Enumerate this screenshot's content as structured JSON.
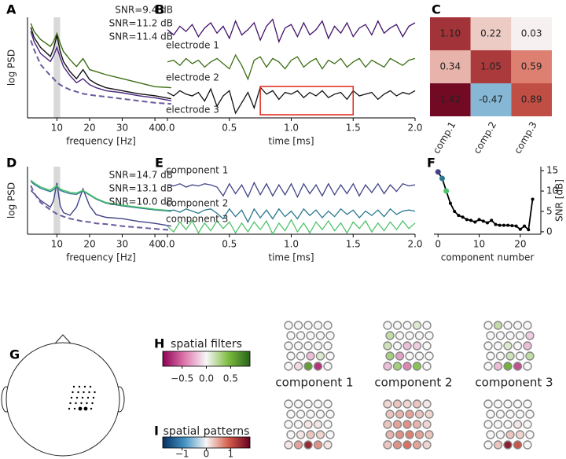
{
  "chart_data": [
    {
      "type": "line",
      "label": "A",
      "xlabel": "frequency [Hz]",
      "ylabel": "log PSD",
      "x": [
        2,
        3,
        5,
        8,
        9,
        10,
        11,
        12,
        14,
        16,
        18,
        20,
        22,
        25,
        30,
        35,
        40,
        45
      ],
      "xlim": [
        1,
        46
      ],
      "xticks": [
        10,
        20,
        30,
        40
      ],
      "ylim": [
        0,
        10
      ],
      "highlight": [
        9,
        11
      ],
      "series": [
        {
          "name": "SNR=9.4 dB",
          "color": "#4b2680",
          "values": [
            8.6,
            7.6,
            6.4,
            5.6,
            6.2,
            7.0,
            6.0,
            5.1,
            4.2,
            3.5,
            3.9,
            3.3,
            3.0,
            2.7,
            2.5,
            2.2,
            2.0,
            1.7
          ]
        },
        {
          "name": "SNR=11.2 dB",
          "color": "#3d6e14",
          "values": [
            9.4,
            8.6,
            7.8,
            7.1,
            7.6,
            8.4,
            7.4,
            6.6,
            5.8,
            5.1,
            5.9,
            4.8,
            4.6,
            4.3,
            3.9,
            3.5,
            3.1,
            3.0
          ]
        },
        {
          "name": "SNR=11.4 dB",
          "color": "#111111",
          "values": [
            9.0,
            8.0,
            7.0,
            6.1,
            6.9,
            8.2,
            6.6,
            5.6,
            4.6,
            3.9,
            4.8,
            3.8,
            3.4,
            3.0,
            2.7,
            2.4,
            2.2,
            1.9
          ]
        },
        {
          "color": "#6b5a9e",
          "dash": true,
          "values": [
            7.7,
            6.8,
            5.3,
            4.2,
            3.9,
            3.5,
            3.3,
            3.1,
            2.8,
            2.6,
            2.4,
            2.3,
            2.2,
            2.1,
            1.9,
            1.7,
            1.5,
            1.4
          ]
        }
      ]
    },
    {
      "type": "traces",
      "label": "B",
      "xlabel": "time [ms]",
      "x": [
        0,
        0.05,
        0.1,
        0.15,
        0.2,
        0.25,
        0.3,
        0.35,
        0.4,
        0.45,
        0.5,
        0.55,
        0.6,
        0.65,
        0.7,
        0.75,
        0.8,
        0.85,
        0.9,
        0.95,
        1,
        1.05,
        1.1,
        1.15,
        1.2,
        1.25,
        1.3,
        1.35,
        1.4,
        1.45,
        1.5,
        1.55,
        1.6,
        1.65,
        1.7,
        1.75,
        1.8,
        1.85,
        1.9,
        1.95,
        2
      ],
      "xlim": [
        0,
        2
      ],
      "xticks": [
        {
          "value": 0,
          "label": "0.0"
        },
        0.5,
        {
          "value": 1,
          "label": "1.0"
        },
        1.5,
        {
          "value": 2,
          "label": "2.0"
        }
      ],
      "highlight": [
        0.75,
        1.5
      ],
      "highlight_color": "#e0241b",
      "series": [
        {
          "name": "electrode 1",
          "color": "#42126b",
          "values": [
            0.1,
            -0.2,
            0.3,
            0.0,
            0.4,
            -0.3,
            0.2,
            0.5,
            -0.1,
            0.3,
            -0.4,
            0.6,
            -0.2,
            0.1,
            0.5,
            -0.5,
            0.3,
            0.7,
            -0.6,
            0.2,
            0.4,
            -0.3,
            0.5,
            -0.2,
            0.1,
            0.6,
            -0.4,
            0.3,
            -0.1,
            0.5,
            -0.3,
            0.2,
            0.4,
            -0.2,
            0.6,
            -0.1,
            0.2,
            0.4,
            -0.3,
            0.3,
            0.5
          ]
        },
        {
          "name": "electrode 2",
          "color": "#3d6e14",
          "values": [
            0.1,
            0.2,
            -0.1,
            0.3,
            0.0,
            0.2,
            -0.2,
            0.1,
            0.3,
            0.0,
            -0.3,
            0.5,
            -0.1,
            -0.9,
            0.2,
            0.4,
            -0.2,
            0.3,
            0.1,
            -0.3,
            0.2,
            0.4,
            -0.2,
            0.1,
            0.3,
            -0.3,
            0.2,
            0.0,
            0.3,
            -0.2,
            0.1,
            0.3,
            -0.2,
            0.2,
            0.0,
            -0.2,
            0.3,
            0.1,
            -0.1,
            0.2,
            0.3
          ]
        },
        {
          "name": "electrode 3",
          "color": "#111111",
          "values": [
            0.2,
            0.0,
            0.3,
            0.1,
            0.0,
            0.2,
            -0.3,
            0.4,
            -0.6,
            0.0,
            0.3,
            -1.0,
            -0.4,
            0.2,
            -0.7,
            0.5,
            0.1,
            0.3,
            -0.2,
            0.2,
            0.1,
            0.3,
            -0.1,
            0.2,
            0.0,
            0.3,
            -0.1,
            0.1,
            0.2,
            -0.2,
            0.3,
            0.0,
            0.1,
            0.2,
            -0.2,
            0.1,
            0.3,
            0.0,
            0.2,
            0.1,
            0.3
          ]
        }
      ]
    },
    {
      "type": "heatmap",
      "label": "C",
      "categories": [
        "comp.1",
        "comp.2",
        "comp.3"
      ],
      "category_colors": [
        "#414487",
        "#2a788e",
        "#4ec36b"
      ],
      "values": [
        [
          1.1,
          0.22,
          0.03
        ],
        [
          0.34,
          1.05,
          0.59
        ],
        [
          1.42,
          -0.47,
          0.89
        ]
      ],
      "value_labels": [
        [
          "1.10",
          "0.22",
          "0.03"
        ],
        [
          "0.34",
          "1.05",
          "0.59"
        ],
        [
          "1.42",
          "-0.47",
          "0.89"
        ]
      ],
      "vlim": [
        -1.5,
        1.5
      ],
      "cmap": [
        "#053061",
        "#4393c3",
        "#f7f7f7",
        "#d6604d",
        "#67001f"
      ]
    },
    {
      "type": "line",
      "label": "D",
      "xlabel": "frequency [Hz]",
      "ylabel": "log PSD",
      "x": [
        2,
        3,
        5,
        8,
        9,
        10,
        11,
        12,
        14,
        16,
        18,
        20,
        22,
        25,
        30,
        35,
        40,
        45
      ],
      "xlim": [
        1,
        46
      ],
      "xticks": [
        10,
        20,
        30,
        40
      ],
      "ylim": [
        0,
        10
      ],
      "highlight": [
        9,
        11
      ],
      "series": [
        {
          "name": "SNR=14.7 dB",
          "color": "#414487",
          "values": [
            6.5,
            6.0,
            5.0,
            4.0,
            5.0,
            7.6,
            4.2,
            3.2,
            2.8,
            4.0,
            6.7,
            4.2,
            2.9,
            2.5,
            2.3,
            1.9,
            1.6,
            1.2
          ]
        },
        {
          "name": "SNR=13.1 dB",
          "color": "#2a788e",
          "values": [
            7.8,
            7.4,
            6.8,
            6.3,
            6.6,
            7.0,
            6.5,
            6.3,
            6.0,
            5.9,
            6.4,
            5.8,
            5.2,
            4.6,
            4.2,
            3.9,
            3.6,
            3.4
          ]
        },
        {
          "name": "SNR=10.0 dB",
          "color": "#4ec36b",
          "values": [
            8.0,
            7.6,
            7.0,
            6.5,
            6.9,
            7.2,
            6.7,
            6.5,
            6.2,
            6.1,
            6.5,
            5.9,
            5.3,
            4.7,
            4.3,
            4.0,
            3.7,
            3.5
          ]
        },
        {
          "color": "#6b5a9e",
          "dash": true,
          "values": [
            7.2,
            6.1,
            4.7,
            3.6,
            3.3,
            3.0,
            2.8,
            2.6,
            2.3,
            2.1,
            1.9,
            1.8,
            1.6,
            1.5,
            1.2,
            1.0,
            0.8,
            0.6
          ]
        }
      ]
    },
    {
      "type": "traces",
      "label": "E",
      "xlabel": "time [ms]",
      "x": [
        0,
        0.05,
        0.1,
        0.15,
        0.2,
        0.25,
        0.3,
        0.35,
        0.4,
        0.45,
        0.5,
        0.55,
        0.6,
        0.65,
        0.7,
        0.75,
        0.8,
        0.85,
        0.9,
        0.95,
        1,
        1.05,
        1.1,
        1.15,
        1.2,
        1.25,
        1.3,
        1.35,
        1.4,
        1.45,
        1.5,
        1.55,
        1.6,
        1.65,
        1.7,
        1.75,
        1.8,
        1.85,
        1.9,
        1.95,
        2
      ],
      "xlim": [
        0,
        2
      ],
      "xticks": [
        {
          "value": 0,
          "label": "0.0"
        },
        0.5,
        {
          "value": 1,
          "label": "1.0"
        },
        1.5,
        {
          "value": 2,
          "label": "2.0"
        }
      ],
      "series": [
        {
          "name": "component 1",
          "color": "#414487",
          "values": [
            0.2,
            0.1,
            0.3,
            0.0,
            0.2,
            0.1,
            0.3,
            0.2,
            0.0,
            -0.8,
            0.3,
            -0.6,
            0.2,
            -0.9,
            0.4,
            -0.7,
            0.3,
            -0.8,
            0.2,
            -0.7,
            0.3,
            -0.9,
            0.3,
            -0.6,
            0.2,
            -0.8,
            0.3,
            -0.7,
            0.2,
            -0.6,
            0.3,
            -0.8,
            0.2,
            -0.5,
            0.3,
            -0.6,
            0.2,
            -0.4,
            0.3,
            0.1,
            0.2
          ]
        },
        {
          "name": "component 2",
          "color": "#2a788e",
          "values": [
            0.1,
            0.2,
            0.0,
            0.3,
            0.1,
            -0.1,
            0.2,
            0.3,
            -0.1,
            -0.6,
            0.3,
            -0.4,
            0.2,
            -0.9,
            0.3,
            -0.5,
            0.2,
            -0.6,
            0.3,
            -0.4,
            0.1,
            -0.6,
            0.3,
            -0.3,
            0.2,
            -0.5,
            0.1,
            -0.4,
            0.3,
            -0.2,
            0.2,
            -0.5,
            0.1,
            -0.3,
            0.2,
            -0.4,
            0.3,
            -0.2,
            0.1,
            0.2,
            0.1
          ]
        },
        {
          "name": "component 3",
          "color": "#4ec36b",
          "values": [
            0.0,
            -0.5,
            0.4,
            -0.3,
            0.5,
            -0.6,
            0.3,
            -0.4,
            0.5,
            -0.2,
            0.4,
            -0.6,
            0.3,
            -0.5,
            0.4,
            -0.3,
            0.5,
            -0.7,
            0.3,
            -0.4,
            0.6,
            -0.5,
            0.3,
            -0.6,
            0.4,
            -0.3,
            0.5,
            -0.4,
            0.3,
            -0.6,
            0.4,
            -0.2,
            0.5,
            -0.5,
            0.3,
            -0.4,
            0.4,
            -0.3,
            0.5,
            -0.2,
            0.3
          ]
        }
      ]
    },
    {
      "type": "scatter",
      "label": "F",
      "xlabel": "component number",
      "ylabel": "SNR [dB]",
      "x": [
        0,
        1,
        2,
        3,
        4,
        5,
        6,
        7,
        8,
        9,
        10,
        11,
        12,
        13,
        14,
        15,
        16,
        17,
        18,
        19,
        20,
        21,
        22,
        23
      ],
      "values": [
        14.7,
        13.1,
        10.0,
        7.0,
        5.0,
        4.0,
        3.6,
        3.0,
        2.8,
        2.4,
        3.0,
        2.6,
        2.2,
        2.8,
        1.8,
        1.6,
        1.6,
        1.6,
        1.5,
        1.4,
        0.6,
        1.4,
        0.5,
        8.0
      ],
      "color": "#000000",
      "highlight_colors": [
        "#414487",
        "#2a788e",
        "#4ec36b"
      ],
      "xlim": [
        -1,
        25
      ],
      "xticks": [
        0,
        10,
        20
      ],
      "ylim": [
        -0.6,
        16
      ],
      "yticks": [
        0,
        5,
        10,
        15
      ]
    },
    {
      "type": "head",
      "label": "G"
    },
    {
      "type": "colorbar",
      "label": "H",
      "title": "spatial filters",
      "lim": [
        -0.9,
        0.9
      ],
      "ticks": [
        {
          "value": -0.5,
          "label": "−0.5"
        },
        {
          "value": 0,
          "label": "0.0"
        },
        0.5
      ],
      "cmap": [
        "#8e0152",
        "#de77ae",
        "#f7f7f7",
        "#7fbc41",
        "#276419"
      ]
    },
    {
      "type": "colorbar",
      "label": "I",
      "title": "spatial patterns",
      "lim": [
        -1.8,
        1.8
      ],
      "ticks": [
        {
          "value": -1,
          "label": "−1"
        },
        0,
        1
      ],
      "cmap": [
        "#053061",
        "#4393c3",
        "#f7f7f7",
        "#d6604d",
        "#67001f"
      ]
    },
    {
      "type": "topomap",
      "components": [
        {
          "name": "component 1",
          "color": "#414487"
        },
        {
          "name": "component 2",
          "color": "#2a788e"
        },
        {
          "name": "component 3",
          "color": "#4ec36b"
        }
      ],
      "filters": [
        [
          0,
          0,
          0,
          0,
          0,
          0,
          0,
          0,
          0,
          0,
          0,
          0,
          0,
          0,
          0,
          0,
          0,
          -0.2,
          0.1,
          0,
          0,
          -0.1,
          0.6,
          -0.7,
          0
        ],
        [
          0,
          0,
          0,
          0.1,
          0,
          0.2,
          0,
          0,
          0,
          0,
          0.15,
          0,
          -0.2,
          -0.15,
          0,
          0.3,
          -0.3,
          0,
          0,
          0,
          -0.2,
          0.3,
          -0.4,
          0.4,
          0
        ],
        [
          0,
          0.2,
          0,
          0,
          0,
          0,
          0,
          0,
          0,
          -0.15,
          0,
          0,
          0.1,
          0,
          -0.2,
          0,
          0,
          0.15,
          0,
          0.2,
          0,
          -0.2,
          0.5,
          -0.6,
          0
        ]
      ],
      "patterns": [
        [
          0,
          0,
          0,
          0,
          0,
          0,
          0,
          0,
          0,
          0,
          0,
          0,
          0.1,
          0.1,
          0,
          0,
          0.1,
          0.3,
          0.2,
          0,
          0.1,
          0.5,
          1.4,
          0.6,
          0.1
        ],
        [
          0.2,
          0.3,
          0.2,
          0.3,
          0.1,
          0.3,
          0.4,
          0.5,
          0.3,
          0.2,
          0.3,
          0.5,
          0.6,
          0.4,
          0.2,
          0.4,
          0.6,
          0.7,
          0.5,
          0.3,
          0.3,
          0.6,
          0.8,
          0.5,
          0.2
        ],
        [
          0,
          0,
          0,
          0,
          0,
          0,
          0,
          0,
          0,
          0,
          0,
          0,
          0,
          0.1,
          0,
          0,
          0,
          0.3,
          0.2,
          0,
          0,
          0.3,
          1.5,
          1.0,
          0
        ]
      ]
    }
  ]
}
